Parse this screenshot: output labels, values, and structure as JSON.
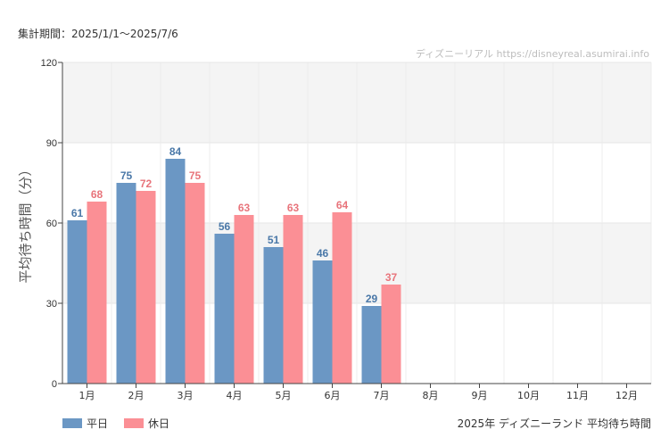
{
  "header": {
    "period": "集計期間：2025/1/1〜2025/7/6",
    "watermark": "ディズニーリアル https://disneyreal.asumirai.info"
  },
  "footer": {
    "caption": "2025年 ディズニーランド 平均待ち時間"
  },
  "colors": {
    "weekday": "#6b97c4",
    "holiday": "#fb8f95",
    "weekday_label": "#4a78a8",
    "holiday_label": "#e8747b",
    "band": "#f4f4f4"
  },
  "chart_data": {
    "type": "bar",
    "ylabel": "平均待ち時間（分）",
    "xlabel": "",
    "ylim": [
      0,
      120
    ],
    "yticks": [
      0,
      30,
      60,
      90,
      120
    ],
    "categories": [
      "1月",
      "2月",
      "3月",
      "4月",
      "5月",
      "6月",
      "7月",
      "8月",
      "9月",
      "10月",
      "11月",
      "12月"
    ],
    "series": [
      {
        "name": "平日",
        "values": [
          61,
          75,
          84,
          56,
          51,
          46,
          29,
          null,
          null,
          null,
          null,
          null
        ]
      },
      {
        "name": "休日",
        "values": [
          68,
          72,
          75,
          63,
          63,
          64,
          37,
          null,
          null,
          null,
          null,
          null
        ]
      }
    ],
    "legend_position": "bottom-left",
    "grid": true
  }
}
